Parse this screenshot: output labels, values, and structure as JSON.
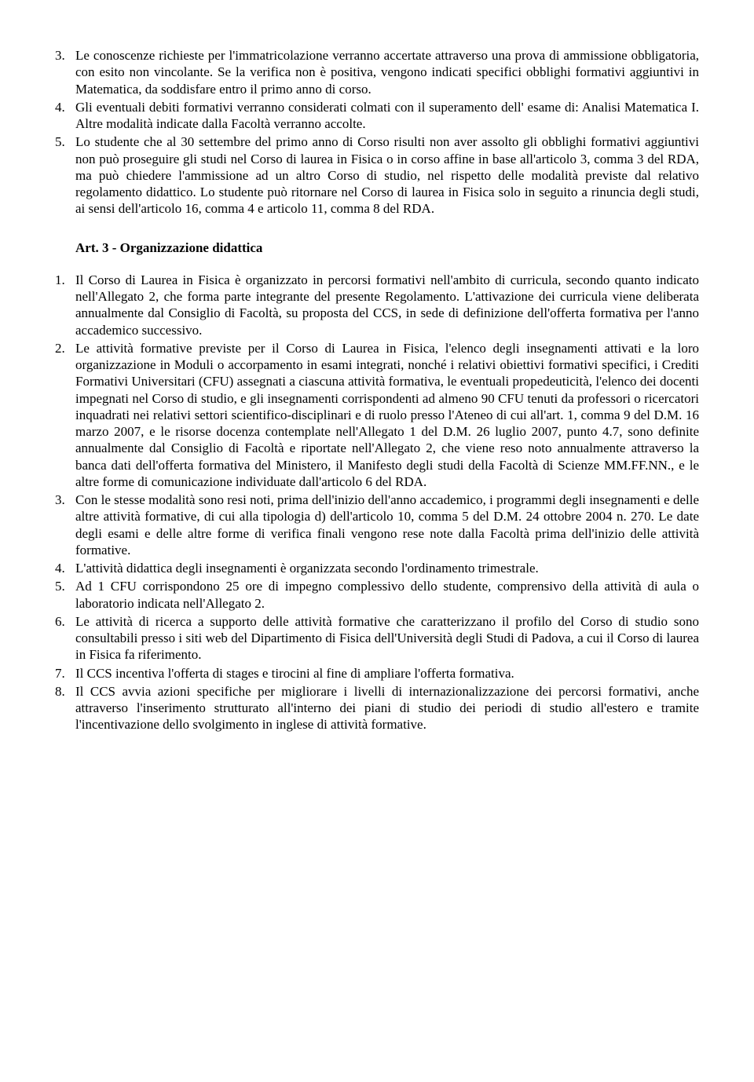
{
  "section_a": {
    "items": [
      {
        "n": "3.",
        "t": "Le conoscenze richieste per l'immatricolazione verranno accertate attraverso una prova di ammissione obbligatoria, con esito non vincolante. Se la verifica non è positiva, vengono indicati specifici obblighi formativi aggiuntivi in Matematica, da soddisfare entro il primo anno di corso."
      },
      {
        "n": "4.",
        "t": "Gli eventuali debiti formativi verranno considerati colmati con il superamento dell' esame di: Analisi Matematica I. Altre modalità indicate dalla Facoltà verranno accolte."
      },
      {
        "n": "5.",
        "t": "Lo studente che al 30 settembre del primo anno di Corso risulti non aver assolto gli obblighi formativi aggiuntivi non può proseguire gli studi nel Corso di laurea in  Fisica o in corso affine in base all'articolo 3, comma 3 del RDA, ma può chiedere l'ammissione ad un altro Corso di studio, nel rispetto delle modalità previste dal relativo regolamento didattico. Lo studente può ritornare nel Corso di laurea in Fisica solo in seguito a rinuncia degli studi, ai sensi dell'articolo 16, comma 4 e articolo 11, comma 8 del RDA."
      }
    ]
  },
  "heading": "Art. 3 - Organizzazione didattica",
  "section_b": {
    "items": [
      {
        "n": "1.",
        "t": "Il Corso di Laurea in Fisica è organizzato in percorsi formativi nell'ambito di curricula, secondo quanto indicato nell'Allegato 2, che forma parte integrante del presente Regolamento. L'attivazione dei curricula viene deliberata annualmente dal Consiglio di Facoltà, su proposta del CCS, in sede di definizione dell'offerta formativa per l'anno accademico successivo."
      },
      {
        "n": "2.",
        "t": "Le attività formative previste per il Corso di Laurea in Fisica, l'elenco degli insegnamenti attivati e la loro organizzazione in Moduli o accorpamento in esami integrati, nonché i relativi obiettivi formativi specifici, i Crediti Formativi Universitari (CFU) assegnati a ciascuna attività formativa, le eventuali propedeuticità, l'elenco dei docenti impegnati nel Corso di studio, e gli insegnamenti corrispondenti ad almeno 90 CFU tenuti da professori o ricercatori inquadrati nei relativi settori scientifico-disciplinari e di ruolo presso l'Ateneo di cui all'art. 1, comma 9 del D.M. 16 marzo 2007, e le risorse docenza contemplate nell'Allegato 1 del D.M. 26 luglio 2007, punto 4.7, sono definite annualmente dal Consiglio di Facoltà e riportate nell'Allegato 2, che viene reso noto annualmente attraverso la banca dati dell'offerta formativa del Ministero, il Manifesto degli studi della Facoltà di Scienze MM.FF.NN., e le altre forme di comunicazione individuate dall'articolo 6 del RDA."
      },
      {
        "n": "3.",
        "t": "Con le stesse modalità sono resi noti, prima dell'inizio dell'anno accademico, i programmi degli insegnamenti e delle altre attività formative, di cui alla tipologia d) dell'articolo 10, comma 5 del D.M. 24 ottobre 2004 n. 270. Le date degli esami e delle altre forme di verifica finali vengono rese note dalla Facoltà prima dell'inizio delle attività formative."
      },
      {
        "n": "4.",
        "t": "L'attività didattica degli insegnamenti è organizzata secondo l'ordinamento trimestrale."
      },
      {
        "n": "5.",
        "t": "Ad 1 CFU corrispondono 25 ore di impegno complessivo dello studente, comprensivo della attività di aula o laboratorio indicata nell'Allegato 2."
      },
      {
        "n": "6.",
        "t": "Le attività di ricerca a supporto delle attività formative che caratterizzano il profilo del Corso di studio sono consultabili presso i siti web del Dipartimento di Fisica dell'Università degli Studi di Padova, a cui il Corso di laurea in Fisica fa riferimento."
      },
      {
        "n": "7.",
        "t": "Il CCS incentiva l'offerta di stages e tirocini al fine di ampliare l'offerta formativa."
      },
      {
        "n": "8.",
        "t": "Il CCS avvia azioni specifiche per migliorare i livelli di internazionalizzazione dei percorsi formativi, anche attraverso l'inserimento strutturato all'interno dei piani di studio dei periodi di studio all'estero e tramite l'incentivazione dello svolgimento in inglese di attività formative."
      }
    ]
  }
}
